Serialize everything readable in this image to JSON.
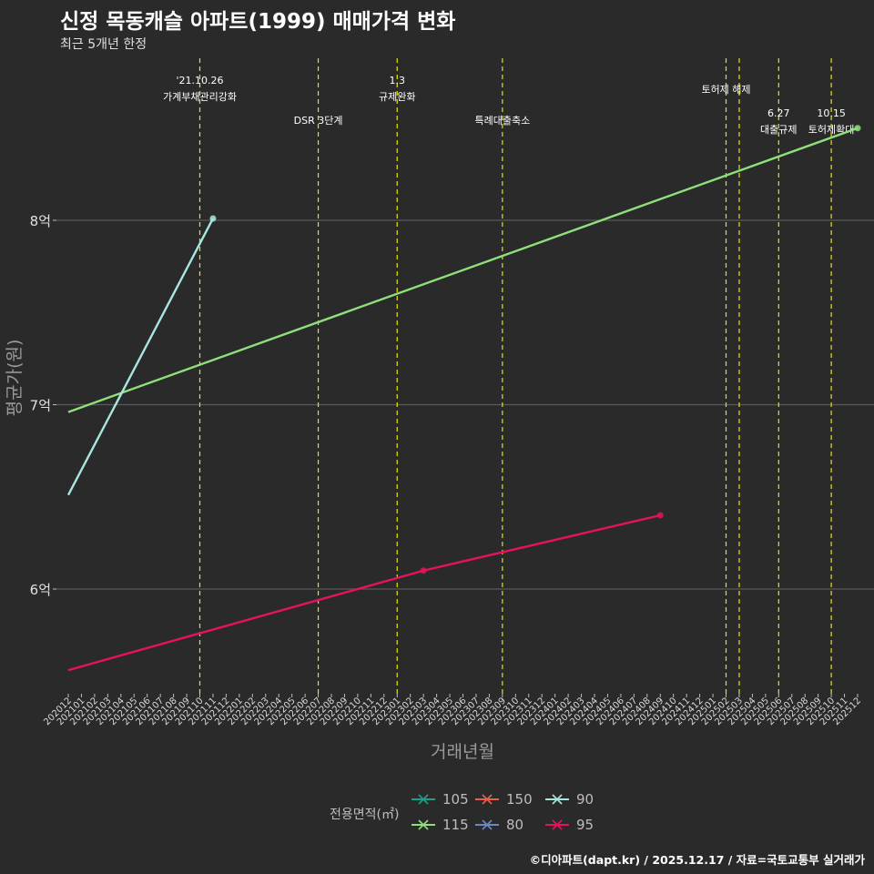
{
  "header": {
    "title": "신정 목동캐슬 아파트(1999) 매매가격 변화",
    "subtitle": "최근 5개년 한정"
  },
  "caption": "©디아파트(dapt.kr) / 2025.12.17 / 자료=국토교통부 실거래가",
  "legend": {
    "title": "전용면적(㎡)",
    "items": [
      {
        "label": "105",
        "color": "#1f9e89"
      },
      {
        "label": "150",
        "color": "#e8604c"
      },
      {
        "label": "90",
        "color": "#a8e6e0"
      },
      {
        "label": "115",
        "color": "#8fe07a"
      },
      {
        "label": "80",
        "color": "#6b87c4"
      },
      {
        "label": "95",
        "color": "#e8115f"
      }
    ]
  },
  "chart_data": {
    "type": "line",
    "title": "신정 목동캐슬 아파트(1999) 매매가격 변화",
    "xlabel": "거래년월",
    "ylabel": "평균가(원)",
    "ylim": [
      5.45,
      8.9
    ],
    "yticks": [
      {
        "value": 6,
        "label": "6억"
      },
      {
        "value": 7,
        "label": "7억"
      },
      {
        "value": 8,
        "label": "8억"
      }
    ],
    "x_months": [
      "202012",
      "202101",
      "202102",
      "202103",
      "202104",
      "202105",
      "202106",
      "202107",
      "202108",
      "202109",
      "202110",
      "202111",
      "202112",
      "202201",
      "202202",
      "202203",
      "202204",
      "202205",
      "202206",
      "202207",
      "202208",
      "202209",
      "202210",
      "202211",
      "202212",
      "202301",
      "202302",
      "202303",
      "202304",
      "202305",
      "202306",
      "202307",
      "202308",
      "202309",
      "202310",
      "202311",
      "202312",
      "202401",
      "202402",
      "202403",
      "202404",
      "202405",
      "202406",
      "202407",
      "202408",
      "202409",
      "202410",
      "202411",
      "202412",
      "202501",
      "202502",
      "202503",
      "202504",
      "202505",
      "202506",
      "202507",
      "202508",
      "202509",
      "202510",
      "202511",
      "202512"
    ],
    "series": [
      {
        "name": "115",
        "color": "#8fe07a",
        "points": [
          {
            "x": "202012",
            "y": 6.96
          },
          {
            "x": "202512",
            "y": 8.5
          }
        ],
        "markers": [
          "202512"
        ]
      },
      {
        "name": "90",
        "color": "#a8e6e0",
        "points": [
          {
            "x": "202012",
            "y": 6.51
          },
          {
            "x": "202111",
            "y": 8.01
          }
        ],
        "markers": [
          "202111"
        ]
      },
      {
        "name": "95",
        "color": "#e8115f",
        "points": [
          {
            "x": "202012",
            "y": 5.56
          },
          {
            "x": "202303",
            "y": 6.1
          },
          {
            "x": "202409",
            "y": 6.4
          }
        ],
        "markers": [
          "202303",
          "202409"
        ]
      }
    ],
    "events": [
      {
        "x": "202110",
        "lines": [
          "'21.10.26",
          "가계부채관리강화"
        ],
        "level": "top"
      },
      {
        "x": "202207",
        "lines": [
          "DSR 3단계"
        ],
        "level": "low"
      },
      {
        "x": "202301",
        "lines": [
          "1.3",
          "규제완화"
        ],
        "level": "top"
      },
      {
        "x": "202309",
        "lines": [
          "특례대출축소"
        ],
        "level": "low"
      },
      {
        "x": "202502",
        "lines": [
          "토허제 해제"
        ],
        "level": "mid"
      },
      {
        "x": "202503",
        "lines": [],
        "level": "none"
      },
      {
        "x": "202506",
        "lines": [
          "6.27",
          "대출규제"
        ],
        "level": "low2"
      },
      {
        "x": "202510",
        "lines": [
          "10.15",
          "토허제확대"
        ],
        "level": "low2"
      }
    ]
  }
}
